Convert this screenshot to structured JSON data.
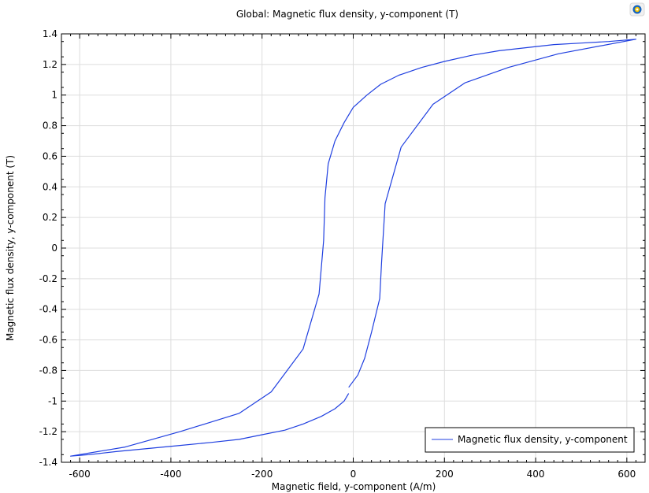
{
  "chart_data": {
    "type": "line",
    "title": "Global: Magnetic flux density, y-component (T)",
    "xlabel": "Magnetic field, y-component (A/m)",
    "ylabel": "Magnetic flux density, y-component (T)",
    "xlim": [
      -640,
      640
    ],
    "ylim": [
      -1.4,
      1.4
    ],
    "xticks": [
      -600,
      -400,
      -200,
      0,
      200,
      400,
      600
    ],
    "xtick_labels": [
      "-600",
      "-400",
      "-200",
      "0",
      "200",
      "400",
      "600"
    ],
    "yticks": [
      -1.4,
      -1.2,
      -1,
      -0.8,
      -0.6,
      -0.4,
      -0.2,
      0,
      0.2,
      0.4,
      0.6,
      0.8,
      1,
      1.2,
      1.4
    ],
    "ytick_labels": [
      "-1.4",
      "-1.2",
      "-1",
      "-0.8",
      "-0.6",
      "-0.4",
      "-0.2",
      "0",
      "0.2",
      "0.4",
      "0.6",
      "0.8",
      "1",
      "1.2",
      "1.4"
    ],
    "grid": true,
    "legend_position": "bottom-right",
    "series": [
      {
        "name": "Magnetic flux density, y-component",
        "color": "#1f3fe0",
        "x": [
          -10,
          -20,
          -40,
          -70,
          -110,
          -150,
          -200,
          -250,
          -310,
          -380,
          -450,
          -520,
          -580,
          -620,
          -500,
          -380,
          -250,
          -180,
          -110,
          -75,
          -65,
          -62,
          -55,
          -40,
          -20,
          0,
          30,
          60,
          100,
          150,
          200,
          260,
          320,
          380,
          440,
          500,
          560,
          620,
          450,
          340,
          245,
          175,
          105,
          70,
          62,
          58,
          40,
          25,
          10,
          -10
        ],
        "y": [
          -0.95,
          -1.0,
          -1.05,
          -1.1,
          -1.15,
          -1.19,
          -1.22,
          -1.25,
          -1.27,
          -1.29,
          -1.31,
          -1.33,
          -1.35,
          -1.36,
          -1.3,
          -1.2,
          -1.08,
          -0.94,
          -0.66,
          -0.3,
          0.05,
          0.33,
          0.55,
          0.7,
          0.82,
          0.92,
          1.0,
          1.07,
          1.13,
          1.18,
          1.22,
          1.26,
          1.29,
          1.31,
          1.33,
          1.34,
          1.35,
          1.365,
          1.27,
          1.18,
          1.08,
          0.94,
          0.66,
          0.29,
          -0.1,
          -0.33,
          -0.55,
          -0.72,
          -0.83,
          -0.91
        ]
      }
    ]
  },
  "ui": {
    "corner_icon": "comsol-logo-icon"
  }
}
